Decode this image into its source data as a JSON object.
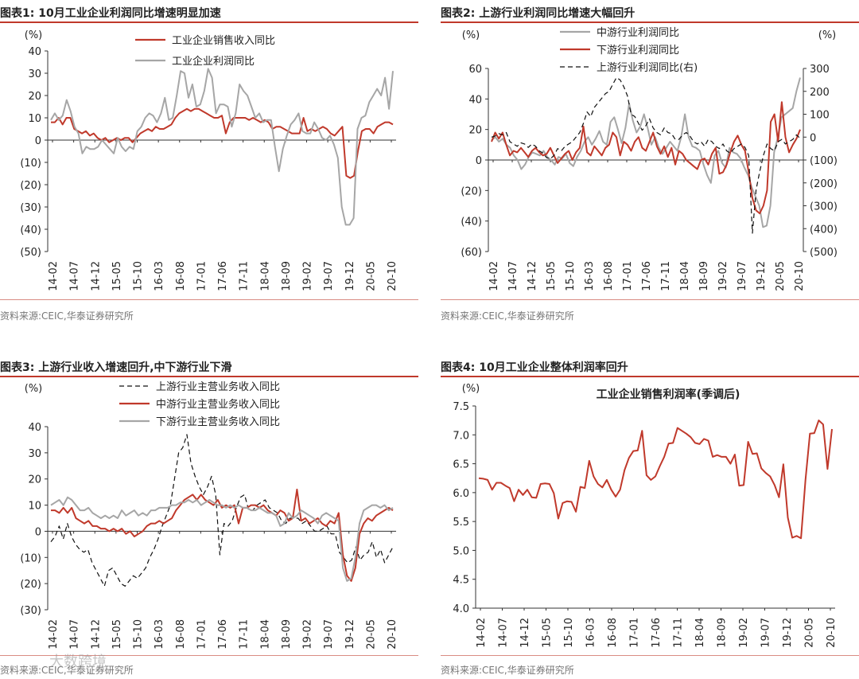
{
  "colors": {
    "red": "#c0392b",
    "gray": "#a6a6a6",
    "black": "#111111",
    "accent": "#c0392b"
  },
  "labels": {
    "time_ticks": [
      "14-02",
      "14-07",
      "14-12",
      "15-05",
      "15-10",
      "16-03",
      "16-08",
      "17-01",
      "17-06",
      "17-11",
      "18-04",
      "18-09",
      "19-02",
      "19-07",
      "19-12",
      "20-05",
      "20-10"
    ]
  },
  "fig1": {
    "title": "图表1:  10月工业企业利润同比增速明显加速",
    "source": "资料来源:CEIC,华泰证券研究所",
    "chart_data": {
      "type": "line",
      "ylabel": "(%)",
      "ylim": [
        -50,
        40
      ],
      "yticks": [
        "40",
        "30",
        "20",
        "10",
        "0",
        "(10)",
        "(20)",
        "(30)",
        "(40)",
        "(50)"
      ],
      "series": [
        {
          "name": "工业企业销售收入同比",
          "color": "#c0392b",
          "dash": "",
          "values": [
            8,
            8,
            10,
            7,
            10,
            10,
            5,
            4,
            3,
            4,
            2,
            3,
            1,
            0,
            1,
            -1,
            0,
            1,
            0,
            1,
            1,
            -1,
            1,
            3,
            4,
            5,
            4,
            6,
            5,
            5,
            6,
            7,
            10,
            12,
            13,
            14,
            13,
            14,
            14,
            13,
            12,
            11,
            10,
            10,
            11,
            3,
            8,
            10,
            10,
            10,
            10,
            9,
            10,
            9,
            8,
            9,
            8,
            5,
            6,
            6,
            5,
            4,
            3,
            3,
            3,
            10,
            4,
            5,
            4,
            5,
            6,
            5,
            3,
            2,
            4,
            6,
            -16,
            -17,
            -16,
            -5,
            4,
            5,
            5,
            3,
            6,
            7,
            8,
            8,
            7
          ]
        },
        {
          "name": "工业企业利润同比",
          "color": "#a6a6a6",
          "dash": "",
          "values": [
            9,
            12,
            9,
            11,
            18,
            13,
            6,
            3,
            -6,
            -3,
            -4,
            -4,
            -3,
            0,
            -2,
            -4,
            -6,
            1,
            -3,
            -5,
            -3,
            -4,
            4,
            6,
            10,
            12,
            11,
            8,
            12,
            19,
            9,
            10,
            20,
            31,
            30,
            19,
            25,
            15,
            16,
            22,
            32,
            28,
            12,
            16,
            16,
            15,
            6,
            12,
            25,
            22,
            20,
            15,
            10,
            12,
            8,
            9,
            9,
            -3,
            -14,
            -4,
            2,
            7,
            9,
            12,
            4,
            3,
            3,
            8,
            5,
            1,
            0,
            2,
            -2,
            -8,
            -30,
            -38,
            -38,
            -35,
            5,
            10,
            11,
            17,
            20,
            23,
            20,
            28,
            14,
            31
          ]
        }
      ]
    }
  },
  "fig2": {
    "title": "图表2:  上游行业利润同比增速大幅回升",
    "source": "资料来源:CEIC,华泰证券研究所",
    "chart_data": {
      "type": "line",
      "ylabel_left": "(%)",
      "ylabel_right": "(%)",
      "ylim": [
        -60,
        60
      ],
      "ylim_right": [
        -500,
        300
      ],
      "yticks": [
        "60",
        "40",
        "20",
        "0",
        "(20)",
        "(40)",
        "(60)"
      ],
      "yticks_right": [
        "300",
        "200",
        "100",
        "0",
        "(100)",
        "(200)",
        "(300)",
        "(400)",
        "(500)"
      ],
      "series": [
        {
          "name": "中游行业利润同比",
          "color": "#a6a6a6",
          "dash": "",
          "axis": "left",
          "values": [
            13,
            15,
            12,
            14,
            10,
            8,
            3,
            0,
            -6,
            -3,
            2,
            5,
            4,
            3,
            6,
            2,
            0,
            -3,
            2,
            1,
            4,
            -2,
            -4,
            2,
            6,
            12,
            15,
            10,
            14,
            19,
            12,
            10,
            25,
            28,
            20,
            11,
            21,
            37,
            26,
            18,
            22,
            30,
            21,
            10,
            15,
            8,
            4,
            8,
            12,
            9,
            6,
            15,
            30,
            15,
            9,
            8,
            6,
            -3,
            -10,
            -15,
            3,
            6,
            -2,
            -5,
            8,
            5,
            4,
            1,
            -5,
            -10,
            -18,
            -24,
            -30,
            -44,
            -43,
            -30,
            5,
            15,
            28,
            30,
            32,
            34,
            45,
            54
          ]
        },
        {
          "name": "下游行业利润同比",
          "color": "#c0392b",
          "dash": "",
          "axis": "left",
          "values": [
            12,
            18,
            14,
            18,
            10,
            3,
            6,
            5,
            8,
            5,
            2,
            6,
            8,
            5,
            3,
            4,
            8,
            3,
            -2,
            1,
            4,
            6,
            0,
            5,
            8,
            22,
            5,
            3,
            9,
            6,
            3,
            8,
            10,
            18,
            15,
            3,
            12,
            10,
            6,
            12,
            15,
            8,
            6,
            12,
            18,
            9,
            4,
            9,
            2,
            8,
            -3,
            6,
            4,
            0,
            -2,
            -4,
            -6,
            0,
            1,
            -3,
            4,
            8,
            -9,
            -8,
            -3,
            5,
            12,
            16,
            10,
            6,
            -8,
            -25,
            -33,
            -35,
            -30,
            -20,
            25,
            30,
            12,
            38,
            15,
            5,
            10,
            14,
            20
          ]
        },
        {
          "name": "上游行业利润同比(右)",
          "color": "#111111",
          "dash": "6 4",
          "axis": "right",
          "values": [
            0,
            5,
            15,
            10,
            20,
            -20,
            -30,
            -40,
            -25,
            -30,
            -45,
            -30,
            -40,
            -60,
            -70,
            -90,
            -95,
            -80,
            -50,
            -60,
            -40,
            -30,
            -20,
            0,
            20,
            60,
            110,
            90,
            130,
            150,
            170,
            190,
            200,
            230,
            260,
            250,
            220,
            180,
            100,
            90,
            60,
            30,
            50,
            80,
            40,
            20,
            10,
            40,
            20,
            15,
            -10,
            -10,
            10,
            20,
            5,
            -20,
            -30,
            -20,
            -40,
            -10,
            -20,
            -40,
            -50,
            -30,
            -60,
            -70,
            -50,
            -40,
            -30,
            -45,
            -80,
            -420,
            -230,
            -150,
            -80,
            -30,
            -50,
            -60,
            -20,
            -10,
            -30,
            -20,
            -10,
            10,
            -5
          ]
        }
      ]
    }
  },
  "fig3": {
    "title": "图表3:  上游行业收入增速回升,中下游行业下滑",
    "source": "资料来源:CEIC,华泰证券研究所",
    "chart_data": {
      "type": "line",
      "ylabel": "(%)",
      "ylim": [
        -30,
        40
      ],
      "yticks": [
        "40",
        "30",
        "20",
        "10",
        "0",
        "(10)",
        "(20)",
        "(30)"
      ],
      "series": [
        {
          "name": "上游行业主营业务收入同比",
          "color": "#111111",
          "dash": "6 4",
          "values": [
            -4,
            -2,
            2,
            -3,
            3,
            -2,
            -5,
            -7,
            -8,
            -7,
            -12,
            -15,
            -18,
            -21,
            -15,
            -14,
            -17,
            -20,
            -21,
            -19,
            -17,
            -18,
            -16,
            -14,
            -10,
            -7,
            -3,
            2,
            6,
            10,
            20,
            30,
            32,
            37,
            26,
            21,
            17,
            14,
            17,
            21,
            14,
            -9,
            3,
            2,
            4,
            9,
            13,
            14,
            8,
            8,
            10,
            11,
            12,
            9,
            8,
            7,
            4,
            3,
            5,
            5,
            5,
            3,
            4,
            2,
            0,
            0,
            1,
            2,
            -1,
            -1,
            -8,
            -10,
            -12,
            -11,
            -6,
            -11,
            -9,
            -8,
            -4,
            -10,
            -7,
            -12,
            -9,
            -6
          ]
        },
        {
          "name": "中游行业主营业务收入同比",
          "color": "#c0392b",
          "dash": "",
          "values": [
            8,
            8,
            7,
            9,
            7,
            9,
            5,
            4,
            3,
            4,
            2,
            2,
            1,
            1,
            0,
            1,
            0,
            1,
            -1,
            0,
            -2,
            -1,
            0,
            2,
            3,
            3,
            4,
            3,
            4,
            5,
            8,
            10,
            12,
            13,
            14,
            12,
            14,
            12,
            11,
            10,
            12,
            9,
            10,
            9,
            10,
            3,
            9,
            9,
            10,
            10,
            9,
            10,
            8,
            7,
            6,
            8,
            7,
            4,
            5,
            16,
            4,
            5,
            3,
            4,
            5,
            3,
            2,
            4,
            3,
            7,
            -9,
            -17,
            -19,
            -14,
            -1,
            3,
            5,
            4,
            6,
            7,
            8,
            9,
            8
          ]
        },
        {
          "name": "下游行业主营业务收入同比",
          "color": "#a6a6a6",
          "dash": "",
          "values": [
            10,
            11,
            12,
            10,
            13,
            12,
            10,
            8,
            8,
            9,
            7,
            6,
            5,
            6,
            5,
            6,
            5,
            8,
            6,
            7,
            8,
            6,
            7,
            6,
            8,
            8,
            9,
            9,
            9,
            10,
            10,
            11,
            11,
            12,
            11,
            12,
            10,
            11,
            12,
            11,
            10,
            10,
            9,
            10,
            9,
            10,
            9,
            9,
            8,
            8,
            9,
            8,
            7,
            7,
            6,
            2,
            3,
            7,
            5,
            6,
            8,
            7,
            6,
            5,
            3,
            6,
            7,
            6,
            5,
            4,
            -14,
            -19,
            -18,
            -10,
            3,
            8,
            9,
            10,
            10,
            9,
            10,
            8,
            9
          ]
        }
      ]
    }
  },
  "fig4": {
    "title": "图表4:  10月工业企业整体利润率回升",
    "source": "资料来源:CEIC,华泰证券研究所",
    "chart_data": {
      "type": "line",
      "title": "工业企业销售利润率(季调后)",
      "ylabel": "(%)",
      "ylim": [
        4.0,
        7.5
      ],
      "yticks": [
        "7.5",
        "7.0",
        "6.5",
        "6.0",
        "5.5",
        "5.0",
        "4.5",
        "4.0"
      ],
      "series": [
        {
          "name": "工业企业销售利润率(季调后)",
          "color": "#c0392b",
          "dash": "",
          "values": [
            6.25,
            6.24,
            6.22,
            6.05,
            6.17,
            6.17,
            6.12,
            6.08,
            5.85,
            6.05,
            5.96,
            6.05,
            5.92,
            5.91,
            6.15,
            6.16,
            6.15,
            5.99,
            5.55,
            5.82,
            5.85,
            5.84,
            5.67,
            6.1,
            6.08,
            6.55,
            6.28,
            6.15,
            6.09,
            6.22,
            6.05,
            5.93,
            6.05,
            6.39,
            6.6,
            6.72,
            6.73,
            7.07,
            6.3,
            6.22,
            6.28,
            6.46,
            6.62,
            6.85,
            6.86,
            7.12,
            7.07,
            7.02,
            6.96,
            6.86,
            6.84,
            6.93,
            6.9,
            6.62,
            6.65,
            6.62,
            6.62,
            6.5,
            6.66,
            6.12,
            6.13,
            6.88,
            6.67,
            6.68,
            6.42,
            6.34,
            6.28,
            6.13,
            5.92,
            6.49,
            5.57,
            5.22,
            5.25,
            5.21,
            6.22,
            7.02,
            7.03,
            7.25,
            7.18,
            6.41,
            7.1
          ]
        }
      ]
    }
  },
  "watermark": "大数跨境"
}
